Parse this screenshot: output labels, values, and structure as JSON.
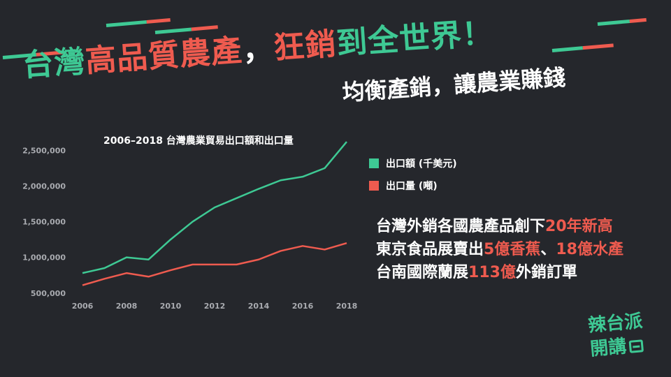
{
  "headline": {
    "part1": "台灣",
    "part2": "高品質農產",
    "comma1": "，",
    "part3": "狂銷",
    "part4": "到全世界！"
  },
  "subheadline": "均衡產銷，讓農業賺錢",
  "colors": {
    "green": "#3ec994",
    "red": "#ef5b4f",
    "background": "#25272c"
  },
  "chart_data": {
    "type": "line",
    "title": "2006–2018 台灣農業貿易出口額和出口量",
    "x": [
      2006,
      2007,
      2008,
      2009,
      2010,
      2011,
      2012,
      2013,
      2014,
      2015,
      2016,
      2017,
      2018
    ],
    "x_ticks": [
      "2006",
      "2008",
      "2010",
      "2012",
      "2014",
      "2016",
      "2018"
    ],
    "y_ticks": [
      "500,000",
      "1,000,000",
      "1,500,000",
      "2,000,000",
      "2,500,000"
    ],
    "ylim": [
      400000,
      2650000
    ],
    "grid": false,
    "legend_position": "right",
    "series": [
      {
        "name": "出口額 (千美元)",
        "color": "#3ec994",
        "values": [
          780000,
          850000,
          1000000,
          970000,
          1250000,
          1500000,
          1700000,
          1830000,
          1960000,
          2080000,
          2130000,
          2250000,
          2620000
        ]
      },
      {
        "name": "出口量 (噸)",
        "color": "#ef5b4f",
        "values": [
          610000,
          700000,
          780000,
          730000,
          820000,
          900000,
          900000,
          900000,
          970000,
          1090000,
          1160000,
          1110000,
          1200000
        ]
      }
    ]
  },
  "facts": {
    "line1_a": "台灣外銷各國農產品創下",
    "line1_b": "20年新高",
    "line2_a": "東京食品展賣出",
    "line2_b": "5億香蕉",
    "line2_c": "、",
    "line2_d": "18億水產",
    "line3_a": "台南國際蘭展",
    "line3_b": "113億",
    "line3_c": "外銷訂單"
  },
  "brand": {
    "line1": "辣台派",
    "line2": "開講"
  }
}
